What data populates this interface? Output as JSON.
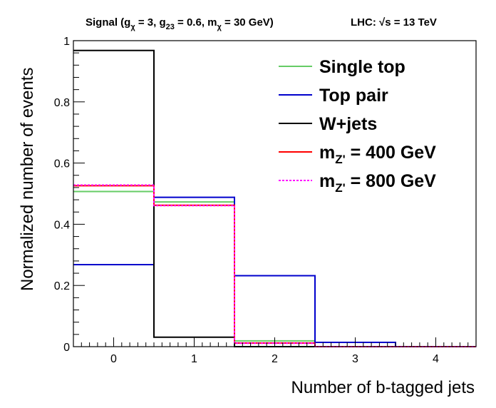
{
  "chart_data": {
    "type": "line",
    "subtype": "step-histogram",
    "header": {
      "signal_text": "Signal (g",
      "g_chi_sub": "χ",
      "g_chi_val": " = 3, g",
      "g23_sub": "23",
      "g23_val": " = 0.6, m",
      "m_chi_sub": "χ",
      "m_chi_val": " = 30 GeV)",
      "lhc_text": "LHC: ",
      "sqrt_text": "√s",
      "energy_text": " = 13 TeV"
    },
    "xlabel": "Number of b-tagged jets",
    "ylabel": "Normalized number of events",
    "xlim": [
      -0.5,
      4.5
    ],
    "ylim": [
      0,
      1.0
    ],
    "x_ticks": [
      "0",
      "1",
      "2",
      "3",
      "4"
    ],
    "y_ticks": [
      "0",
      "0.2",
      "0.4",
      "0.6",
      "0.8",
      "1"
    ],
    "bin_edges": [
      -0.5,
      0.5,
      1.5,
      2.5,
      3.5,
      4.5
    ],
    "series": [
      {
        "name": "Single top",
        "color": "#66cc66",
        "dash": "solid",
        "values": [
          0.507,
          0.473,
          0.019,
          0.0,
          0.0
        ]
      },
      {
        "name": "Top pair",
        "color": "#0000cc",
        "dash": "solid",
        "values": [
          0.268,
          0.488,
          0.232,
          0.014,
          0.0
        ]
      },
      {
        "name": "W+jets",
        "color": "#000000",
        "dash": "solid",
        "values": [
          0.968,
          0.031,
          0.0,
          0.0,
          0.0
        ]
      },
      {
        "name_main": "m",
        "name_sub": "Z'",
        "name_rest": " = 400 GeV",
        "color": "#ff0000",
        "dash": "solid",
        "values": [
          0.526,
          0.462,
          0.012,
          0.0,
          0.0
        ]
      },
      {
        "name_main": "m",
        "name_sub": "Z'",
        "name_rest": " = 800 GeV",
        "color": "#ff00ff",
        "dash": "dotted",
        "values": [
          0.528,
          0.461,
          0.011,
          0.0,
          0.0
        ]
      }
    ],
    "legend_position": "top-right",
    "grid": false
  }
}
